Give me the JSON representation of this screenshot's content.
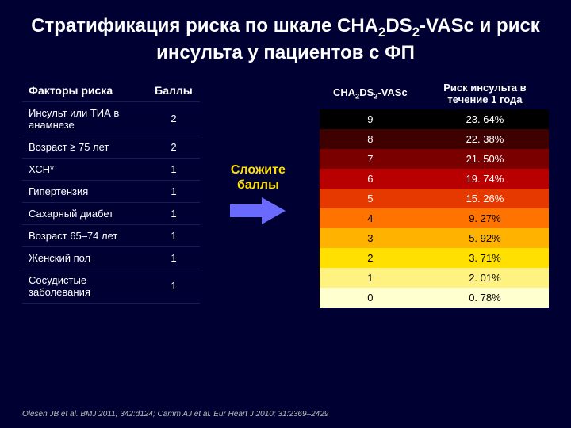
{
  "background_color": "#000033",
  "title_html": "Стратификация риска по шкале CHA<sub>2</sub>DS<sub>2</sub>-VASc и риск инсульта у пациентов с ФП",
  "factors_table": {
    "header_factor": "Факторы риска",
    "header_points": "Баллы",
    "rows": [
      {
        "label": "Инсульт или ТИА в анамнезе",
        "points": "2"
      },
      {
        "label": "Возраст ≥ 75 лет",
        "points": "2"
      },
      {
        "label": "ХСН*",
        "points": "1"
      },
      {
        "label": "Гипертензия",
        "points": "1"
      },
      {
        "label": "Сахарный диабет",
        "points": "1"
      },
      {
        "label": "Возраст 65–74 лет",
        "points": "1"
      },
      {
        "label": "Женский пол",
        "points": "1"
      },
      {
        "label": "Сосудистые заболевания",
        "points": "1"
      }
    ]
  },
  "sum_label": "Сложите баллы",
  "arrow": {
    "color": "#6a6aff",
    "width": 70,
    "height": 34
  },
  "risk_table": {
    "header_score_html": "CHA<sub>2</sub>DS<sub>2</sub>-VASc",
    "header_risk": "Риск инсульта в течение 1 года",
    "rows": [
      {
        "score": "9",
        "risk": "23. 64%",
        "bg": "#000000",
        "fg": "#ffffff"
      },
      {
        "score": "8",
        "risk": "22. 38%",
        "bg": "#3f0000",
        "fg": "#ffffff"
      },
      {
        "score": "7",
        "risk": "21. 50%",
        "bg": "#7a0000",
        "fg": "#ffffff"
      },
      {
        "score": "6",
        "risk": "19. 74%",
        "bg": "#b80000",
        "fg": "#ffffff"
      },
      {
        "score": "5",
        "risk": "15. 26%",
        "bg": "#e63900",
        "fg": "#ffffff"
      },
      {
        "score": "4",
        "risk": "9. 27%",
        "bg": "#ff7300",
        "fg": "#000000"
      },
      {
        "score": "3",
        "risk": "5. 92%",
        "bg": "#ffb300",
        "fg": "#000000"
      },
      {
        "score": "2",
        "risk": "3. 71%",
        "bg": "#ffe000",
        "fg": "#000000"
      },
      {
        "score": "1",
        "risk": "2. 01%",
        "bg": "#fff280",
        "fg": "#000000"
      },
      {
        "score": "0",
        "risk": "0. 78%",
        "bg": "#ffffd0",
        "fg": "#000000"
      }
    ]
  },
  "citation": "Olesen JB et al. BMJ 2011; 342:d124; Camm AJ et al. Eur Heart J 2010; 31:2369–2429"
}
